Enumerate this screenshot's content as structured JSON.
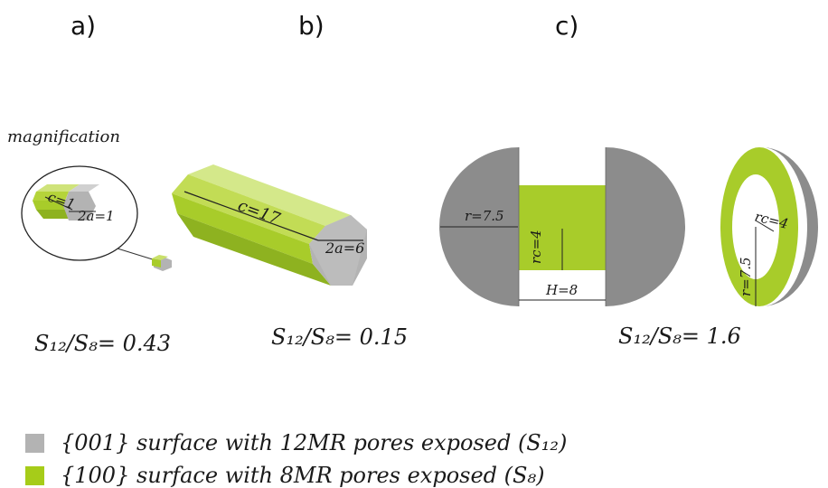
{
  "panels": {
    "a": "a)",
    "b": "b)",
    "c": "c)"
  },
  "magnification_label": "magnification",
  "a": {
    "c_label": "c=1",
    "a_label": "2a=1",
    "ratio": "S₁₂/S₈= 0.43"
  },
  "b": {
    "c_label": "c=17",
    "a_label": "2a=6",
    "ratio": "S₁₂/S₈= 0.15"
  },
  "c": {
    "r_label": "r=7.5",
    "rc_label": "rc=4",
    "h_label": "H=8",
    "ring_rc_label": "rc=4",
    "ring_r_label": "r=7.5",
    "ratio": "S₁₂/S₈= 1.6"
  },
  "legend": [
    {
      "text": "{001} surface with 12MR pores exposed (S₁₂)",
      "color": "#b3b3b3"
    },
    {
      "text": "{100} surface with 8MR pores exposed (S₈)",
      "color": "#a6cc19"
    }
  ],
  "colors": {
    "gray_face": "#b3b3b3",
    "dark_gray": "#8c8c8c",
    "green_top": "#c9e06a",
    "green_mid": "#a8cc2a",
    "green_dark": "#8eb220"
  }
}
